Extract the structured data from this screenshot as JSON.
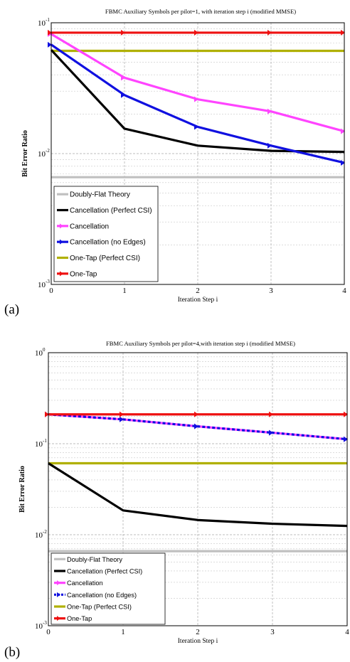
{
  "captions": {
    "a": "(a)",
    "b": "(b)"
  },
  "chart_data": [
    {
      "type": "line",
      "title": "FBMC Auxiliary Symbols per pilot=1, with iteration step i (modified MMSE)",
      "xlabel": "Iteration Step i",
      "ylabel": "Bit Error Ratio",
      "x": [
        0,
        1,
        2,
        3,
        4
      ],
      "xlim": [
        0,
        4
      ],
      "ylim": [
        0.001,
        0.1
      ],
      "yscale": "log",
      "xticks": [
        "0",
        "1",
        "2",
        "3",
        "4"
      ],
      "yticks": [
        {
          "value": 0.1,
          "base": "10",
          "exp": "-1"
        },
        {
          "value": 0.01,
          "base": "10",
          "exp": "-2"
        },
        {
          "value": 0.001,
          "base": "10",
          "exp": "-3"
        }
      ],
      "grid": true,
      "legend_position": "bottom-left",
      "series": [
        {
          "name": "Doubly-Flat Theory",
          "color": "#c0c0c0",
          "marker": "none",
          "dashed": false,
          "values": [
            0.0066,
            0.0066,
            0.0066,
            0.0066,
            0.0066
          ]
        },
        {
          "name": "Cancellation (Perfect CSI)",
          "color": "#000000",
          "marker": "none",
          "dashed": false,
          "values": [
            0.062,
            0.0155,
            0.0115,
            0.0105,
            0.0103
          ]
        },
        {
          "name": "Cancellation",
          "color": "#ff44ff",
          "marker": "arrow",
          "dashed": false,
          "values": [
            0.082,
            0.038,
            0.026,
            0.021,
            0.0148
          ]
        },
        {
          "name": "Cancellation (no Edges)",
          "color": "#1010e0",
          "marker": "arrow",
          "dashed": false,
          "values": [
            0.068,
            0.028,
            0.016,
            0.0115,
            0.0085
          ]
        },
        {
          "name": "One-Tap (Perfect CSI)",
          "color": "#b0b000",
          "marker": "none",
          "dashed": false,
          "values": [
            0.061,
            0.061,
            0.061,
            0.061,
            0.061
          ]
        },
        {
          "name": "One-Tap",
          "color": "#ee1111",
          "marker": "arrow",
          "dashed": false,
          "values": [
            0.084,
            0.084,
            0.084,
            0.084,
            0.084
          ]
        }
      ]
    },
    {
      "type": "line",
      "title": "FBMC Auxiliary Symbols per pilot=4,with iteration step i (modified MMSE)",
      "xlabel": "Iteration Step i",
      "ylabel": "Bit Error Ratio",
      "x": [
        0,
        1,
        2,
        3,
        4
      ],
      "xlim": [
        0,
        4
      ],
      "ylim": [
        0.001,
        1
      ],
      "yscale": "log",
      "xticks": [
        "0",
        "1",
        "2",
        "3",
        "4"
      ],
      "yticks": [
        {
          "value": 1,
          "base": "10",
          "exp": "0"
        },
        {
          "value": 0.1,
          "base": "10",
          "exp": "-1"
        },
        {
          "value": 0.01,
          "base": "10",
          "exp": "-2"
        },
        {
          "value": 0.001,
          "base": "10",
          "exp": "-3"
        }
      ],
      "grid": true,
      "legend_position": "bottom-left",
      "series": [
        {
          "name": "Doubly-Flat Theory",
          "color": "#c0c0c0",
          "marker": "none",
          "dashed": false,
          "values": [
            0.0066,
            0.0066,
            0.0066,
            0.0066,
            0.0066
          ]
        },
        {
          "name": "Cancellation (Perfect CSI)",
          "color": "#000000",
          "marker": "none",
          "dashed": false,
          "values": [
            0.061,
            0.0185,
            0.0145,
            0.0132,
            0.0125
          ]
        },
        {
          "name": "Cancellation",
          "color": "#ff44ff",
          "marker": "arrow",
          "dashed": false,
          "values": [
            0.21,
            0.185,
            0.155,
            0.132,
            0.112
          ]
        },
        {
          "name": "Cancellation (no Edges)",
          "color": "#1010e0",
          "marker": "arrow",
          "dashed": true,
          "values": [
            0.21,
            0.185,
            0.155,
            0.132,
            0.112
          ]
        },
        {
          "name": "One-Tap (Perfect CSI)",
          "color": "#b0b000",
          "marker": "none",
          "dashed": false,
          "values": [
            0.061,
            0.061,
            0.061,
            0.061,
            0.061
          ]
        },
        {
          "name": "One-Tap",
          "color": "#ee1111",
          "marker": "arrow",
          "dashed": false,
          "values": [
            0.21,
            0.21,
            0.21,
            0.21,
            0.21
          ]
        }
      ]
    }
  ]
}
